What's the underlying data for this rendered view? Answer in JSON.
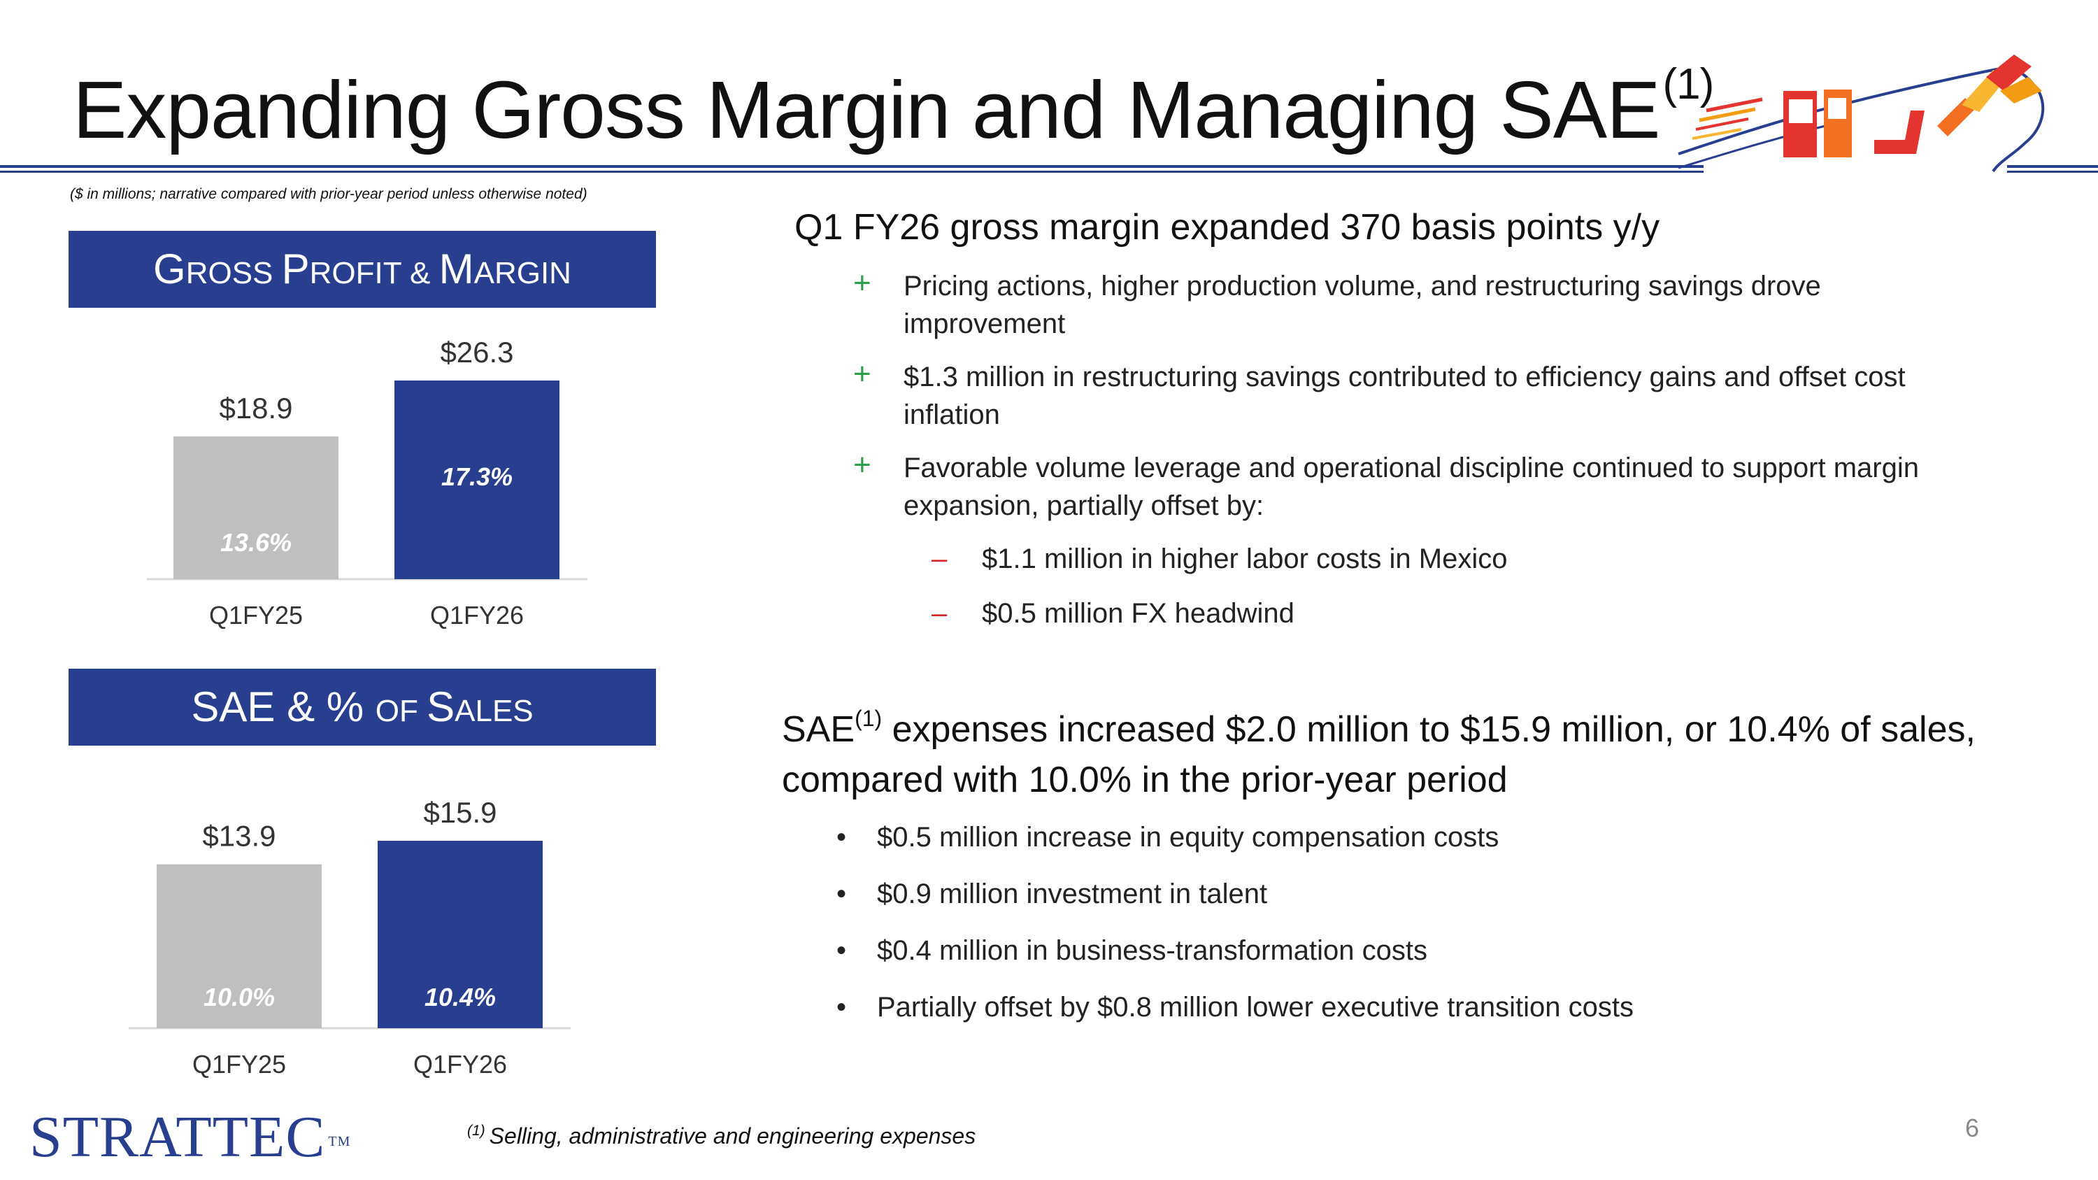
{
  "header": {
    "title": "Expanding Gross Margin and Managing SAE",
    "title_sup": "(1)",
    "note": "($ in millions; narrative compared with prior-year period unless otherwise noted)"
  },
  "colors": {
    "brand_blue": "#283e8f",
    "bar_gray": "#bfbfbf",
    "plus_green": "#2e9e4a",
    "minus_red": "#d9262b"
  },
  "sections": {
    "gross_profit": {
      "head_big1": "G",
      "head_small1": "ROSS ",
      "head_big2": "P",
      "head_small2": "ROFIT & ",
      "head_big3": "M",
      "head_small3": "ARGIN"
    },
    "sae": {
      "head_big1": "SAE & % ",
      "head_small1": "OF ",
      "head_big2": "S",
      "head_small2": "ALES"
    }
  },
  "chart_data": [
    {
      "type": "bar",
      "categories": [
        "Q1FY25",
        "Q1FY26"
      ],
      "values": [
        18.9,
        26.3
      ],
      "value_labels": [
        "$18.9",
        "$26.3"
      ],
      "inner_labels": [
        "13.6%",
        "17.3%"
      ],
      "colors": [
        "#bfbfbf",
        "#283e8f"
      ],
      "title": "Gross Profit & Margin",
      "ylim": [
        0,
        26.3
      ]
    },
    {
      "type": "bar",
      "categories": [
        "Q1FY25",
        "Q1FY26"
      ],
      "values": [
        13.9,
        15.9
      ],
      "value_labels": [
        "$13.9",
        "$15.9"
      ],
      "inner_labels": [
        "10.0%",
        "10.4%"
      ],
      "colors": [
        "#bfbfbf",
        "#283e8f"
      ],
      "title": "SAE & % of Sales",
      "ylim": [
        0,
        15.9
      ]
    }
  ],
  "gross_margin": {
    "heading": "Q1 FY26 gross margin expanded 370 basis points y/y",
    "bullets": [
      {
        "mark": "+",
        "text1": "Pricing actions, higher production volume, and restructuring savings drove",
        "text2": "improvement"
      },
      {
        "mark": "+",
        "text1": "$1.3 million in restructuring savings contributed to efficiency gains and offset cost",
        "text2": "inflation"
      },
      {
        "mark": "+",
        "text1": "Favorable volume leverage and operational discipline continued to support margin",
        "text2": "expansion, partially offset by:"
      }
    ],
    "sub_bullets": [
      {
        "mark": "–",
        "text": "$1.1 million in higher labor costs in Mexico"
      },
      {
        "mark": "–",
        "text": "$0.5 million FX headwind"
      }
    ]
  },
  "sae": {
    "heading_pre": "SAE",
    "heading_sup": "(1)",
    "heading_line1": " expenses increased $2.0 million to $15.9 million, or 10.4% of sales,",
    "heading_line2": "compared with 10.0% in the prior-year period",
    "bullets": [
      {
        "mark": "•",
        "text": "$0.5 million increase in equity compensation costs"
      },
      {
        "mark": "•",
        "text": "$0.9 million investment in talent"
      },
      {
        "mark": "•",
        "text": "$0.4 million in business-transformation costs"
      },
      {
        "mark": "•",
        "text": "Partially offset by $0.8 million lower executive transition costs"
      }
    ]
  },
  "footer": {
    "footnote_sup": "(1)",
    "footnote": "Selling, administrative and engineering expenses",
    "page_number": "6",
    "logo": "STRATTEC",
    "logo_tm": "TM"
  }
}
